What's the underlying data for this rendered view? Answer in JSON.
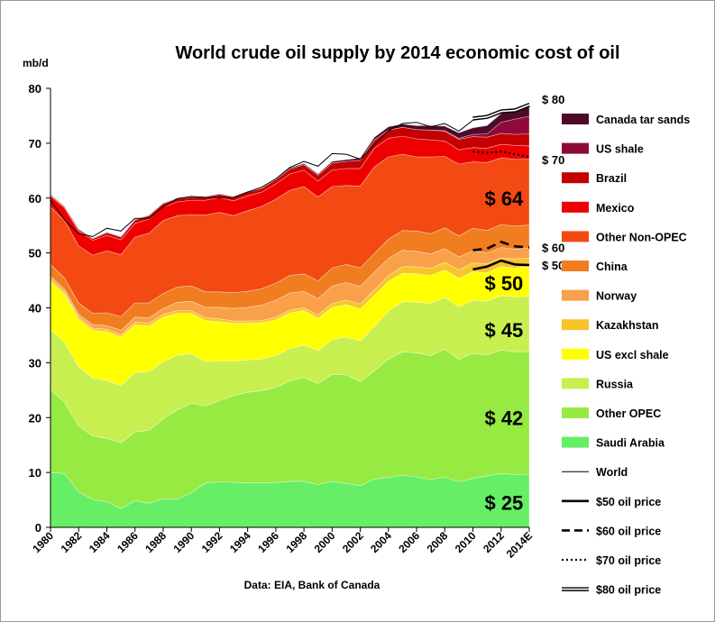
{
  "chart_data": {
    "type": "area",
    "title": "World crude oil supply by 2014  economic cost of oil",
    "ylabel": "mb/d",
    "source": "Data:  EIA, Bank of Canada",
    "ylim": [
      0,
      80
    ],
    "yticks": [
      0,
      10,
      20,
      30,
      40,
      50,
      60,
      70,
      80
    ],
    "xlim": [
      1980,
      2014
    ],
    "x": [
      1980,
      1981,
      1982,
      1983,
      1984,
      1985,
      1986,
      1987,
      1988,
      1989,
      1990,
      1991,
      1992,
      1993,
      1994,
      1995,
      1996,
      1997,
      1998,
      1999,
      2000,
      2001,
      2002,
      2003,
      2004,
      2005,
      2006,
      2007,
      2008,
      2009,
      2010,
      2011,
      2012,
      2013,
      2014
    ],
    "xtick_values": [
      1980,
      1982,
      1984,
      1986,
      1988,
      1990,
      1992,
      1994,
      1996,
      1998,
      2000,
      2002,
      2004,
      2006,
      2008,
      2010,
      2012,
      2014
    ],
    "xtick_labels": [
      "1980",
      "1982",
      "1984",
      "1986",
      "1988",
      "1990",
      "1992",
      "1994",
      "1996",
      "1998",
      "2000",
      "2002",
      "2004",
      "2006",
      "2008",
      "2010",
      "2012",
      "2014E"
    ],
    "series": [
      {
        "name": "Saudi Arabia",
        "color": "#66ee66",
        "values": [
          10,
          9.8,
          6.5,
          5.1,
          4.7,
          3.4,
          4.9,
          4.4,
          5.2,
          5.1,
          6.3,
          8.1,
          8.3,
          8.2,
          8.1,
          8.1,
          8.2,
          8.4,
          8.4,
          7.8,
          8.4,
          8.0,
          7.6,
          8.8,
          9.1,
          9.5,
          9.2,
          8.7,
          9.2,
          8.3,
          8.9,
          9.4,
          9.8,
          9.6,
          9.7
        ]
      },
      {
        "name": "Other OPEC",
        "color": "#96ea42",
        "values": [
          15,
          13.0,
          12.0,
          11.5,
          11.5,
          12.0,
          12.5,
          13.3,
          14.6,
          16.3,
          16.3,
          14.0,
          14.8,
          15.8,
          16.5,
          16.8,
          17.3,
          18.3,
          18.9,
          18.4,
          19.5,
          19.8,
          18.9,
          19.7,
          21.5,
          22.5,
          22.6,
          22.6,
          23.3,
          22.3,
          22.8,
          22.0,
          22.5,
          22.4,
          22.3
        ]
      },
      {
        "name": "Russia",
        "color": "#c8ef50",
        "values": [
          11,
          10.9,
          10.8,
          10.6,
          10.6,
          10.4,
          10.8,
          10.7,
          10.4,
          10.0,
          9.0,
          8.1,
          7.2,
          6.3,
          5.9,
          5.8,
          5.8,
          5.9,
          5.9,
          6.0,
          6.3,
          6.9,
          7.5,
          8.1,
          8.8,
          9.1,
          9.3,
          9.5,
          9.4,
          9.6,
          9.7,
          9.8,
          9.9,
          10.0,
          10.1
        ]
      },
      {
        "name": "US excl shale",
        "color": "#ffff00",
        "values": [
          8.9,
          8.8,
          8.7,
          8.7,
          8.9,
          8.9,
          8.7,
          8.3,
          8.1,
          7.6,
          7.4,
          7.5,
          7.2,
          6.9,
          6.7,
          6.6,
          6.5,
          6.5,
          6.3,
          5.9,
          5.9,
          5.9,
          5.8,
          5.7,
          5.4,
          5.2,
          5.1,
          5.1,
          5.0,
          5.2,
          5.2,
          5.2,
          5.3,
          5.3,
          5.4
        ]
      },
      {
        "name": "Kazakhstan",
        "color": "#f8c42a",
        "values": [
          0.4,
          0.4,
          0.4,
          0.4,
          0.4,
          0.4,
          0.5,
          0.5,
          0.5,
          0.5,
          0.5,
          0.5,
          0.5,
          0.4,
          0.4,
          0.4,
          0.5,
          0.5,
          0.5,
          0.6,
          0.7,
          0.8,
          0.9,
          1.0,
          1.1,
          1.2,
          1.3,
          1.3,
          1.4,
          1.5,
          1.6,
          1.6,
          1.6,
          1.6,
          1.6
        ]
      },
      {
        "name": "Norway",
        "color": "#f9a04a",
        "values": [
          0.5,
          0.5,
          0.5,
          0.6,
          0.7,
          0.8,
          0.9,
          1.0,
          1.1,
          1.5,
          1.7,
          1.9,
          2.1,
          2.3,
          2.5,
          2.8,
          3.1,
          3.1,
          3.0,
          3.0,
          3.2,
          3.2,
          3.2,
          3.2,
          3.1,
          3.0,
          2.8,
          2.6,
          2.5,
          2.4,
          2.2,
          2.0,
          1.9,
          1.8,
          1.8
        ]
      },
      {
        "name": "China",
        "color": "#f07d20",
        "values": [
          2.1,
          2.0,
          2.0,
          2.1,
          2.3,
          2.5,
          2.6,
          2.7,
          2.7,
          2.8,
          2.8,
          2.8,
          2.8,
          2.9,
          2.9,
          3.0,
          3.1,
          3.2,
          3.2,
          3.2,
          3.3,
          3.3,
          3.4,
          3.4,
          3.5,
          3.6,
          3.7,
          3.7,
          3.8,
          3.8,
          4.1,
          4.1,
          4.2,
          4.2,
          4.2
        ]
      },
      {
        "name": "Other Non-OPEC",
        "color": "#f24a12",
        "values": [
          10.5,
          10.5,
          10.4,
          10.6,
          11.3,
          11.3,
          12.0,
          12.7,
          13.3,
          13.0,
          13.0,
          14.0,
          14.5,
          14.0,
          14.7,
          15.0,
          15.3,
          15.5,
          15.9,
          15.3,
          14.8,
          14.4,
          14.9,
          15.8,
          15.0,
          13.9,
          13.5,
          14.0,
          13.0,
          13.1,
          12.1,
          12.4,
          12.1,
          12.2,
          12.0
        ]
      },
      {
        "name": "Mexico",
        "color": "#ee0000",
        "values": [
          2.0,
          2.3,
          2.7,
          2.7,
          2.8,
          2.7,
          2.5,
          2.6,
          2.5,
          2.5,
          2.6,
          2.7,
          2.7,
          2.7,
          2.7,
          2.6,
          2.8,
          3.0,
          3.0,
          2.9,
          3.0,
          3.1,
          3.2,
          3.4,
          3.4,
          3.3,
          3.3,
          3.1,
          2.8,
          2.6,
          2.6,
          2.6,
          2.5,
          2.5,
          2.4
        ]
      },
      {
        "name": "Brazil",
        "color": "#c40000",
        "values": [
          0.2,
          0.2,
          0.3,
          0.3,
          0.5,
          0.5,
          0.6,
          0.6,
          0.6,
          0.6,
          0.6,
          0.6,
          0.6,
          0.7,
          0.7,
          0.7,
          0.8,
          0.9,
          1.0,
          1.1,
          1.3,
          1.3,
          1.5,
          1.5,
          1.5,
          1.6,
          1.7,
          1.8,
          1.8,
          1.9,
          2.0,
          2.0,
          2.0,
          2.0,
          2.2
        ]
      },
      {
        "name": "US shale",
        "color": "#8e0a3a",
        "values": [
          0,
          0,
          0,
          0,
          0,
          0,
          0,
          0,
          0,
          0,
          0,
          0,
          0,
          0,
          0,
          0,
          0,
          0,
          0,
          0,
          0,
          0,
          0,
          0,
          0,
          0,
          0,
          0,
          0.1,
          0.2,
          0.4,
          0.6,
          2.0,
          2.8,
          3.2
        ]
      },
      {
        "name": "Canada tar sands",
        "color": "#4d0a2a",
        "values": [
          0.1,
          0.1,
          0.1,
          0.1,
          0.1,
          0.1,
          0.1,
          0.1,
          0.1,
          0.1,
          0.1,
          0.1,
          0.1,
          0.1,
          0.1,
          0.1,
          0.1,
          0.2,
          0.2,
          0.2,
          0.3,
          0.3,
          0.4,
          0.5,
          0.6,
          0.6,
          0.7,
          0.8,
          0.8,
          1.0,
          1.2,
          1.5,
          1.6,
          1.9,
          2.4
        ]
      }
    ],
    "cost_lines": [
      {
        "name": "World",
        "style": "thin",
        "x": [
          1980,
          1981,
          1982,
          1983,
          1984,
          1985,
          1986,
          1987,
          1988,
          1989,
          1990,
          1991,
          1992,
          1993,
          1994,
          1995,
          1996,
          1997,
          1998,
          1999,
          2000,
          2001,
          2002,
          2003,
          2004,
          2005,
          2006,
          2007,
          2008,
          2009,
          2010,
          2011,
          2012,
          2013,
          2014
        ],
        "values": [
          59.7,
          56,
          53.5,
          53,
          54.5,
          54,
          56.3,
          56.3,
          58.4,
          59.9,
          60.3,
          60.1,
          60.1,
          60.1,
          61.1,
          62.0,
          63.5,
          65.6,
          66.7,
          65.8,
          68.1,
          68.0,
          67.1,
          69.7,
          72.3,
          73.6,
          73.8,
          73.0,
          73.6,
          72.2,
          74.2,
          74.7,
          76.0,
          76.1,
          77.3
        ]
      },
      {
        "name": "$50 oil price",
        "style": "solid",
        "x": [
          2010,
          2011,
          2012,
          2013,
          2014
        ],
        "values": [
          47.0,
          47.5,
          48.6,
          47.9,
          47.8
        ]
      },
      {
        "name": "$60 oil price",
        "style": "dashed",
        "x": [
          2010,
          2011,
          2012,
          2013,
          2014
        ],
        "values": [
          50.5,
          50.8,
          52.0,
          51.2,
          51.0
        ]
      },
      {
        "name": "$70 oil price",
        "style": "dotted",
        "x": [
          2010,
          2011,
          2012,
          2013,
          2014
        ],
        "values": [
          68.5,
          68.2,
          68.5,
          68.0,
          67.5
        ]
      },
      {
        "name": "$80 oil price",
        "style": "double",
        "x": [
          2010,
          2011,
          2012,
          2013,
          2014
        ],
        "values": [
          74.5,
          74.8,
          75.8,
          76.0,
          77.0
        ]
      }
    ],
    "cost_labels": [
      {
        "text": "$ 25",
        "x": 2012.2,
        "y": 4.5,
        "kind": "big"
      },
      {
        "text": "$ 42",
        "x": 2012.2,
        "y": 20.0,
        "kind": "big"
      },
      {
        "text": "$ 45",
        "x": 2012.2,
        "y": 36.0,
        "kind": "big"
      },
      {
        "text": "$ 50",
        "x": 2012.2,
        "y": 44.5,
        "kind": "big"
      },
      {
        "text": "$ 64",
        "x": 2012.2,
        "y": 60.0,
        "kind": "big"
      },
      {
        "text": "$ 50",
        "x": 2014.9,
        "y": 47.8,
        "kind": "side"
      },
      {
        "text": "$ 60",
        "x": 2014.9,
        "y": 51.0,
        "kind": "side"
      },
      {
        "text": "$ 70",
        "x": 2014.9,
        "y": 67.0,
        "kind": "side"
      },
      {
        "text": "$ 80",
        "x": 2014.9,
        "y": 78.0,
        "kind": "side"
      }
    ],
    "legend_position": "right",
    "legend": [
      {
        "label": "Canada tar sands",
        "type": "swatch",
        "color": "#4d0a2a"
      },
      {
        "label": "US shale",
        "type": "swatch",
        "color": "#8e0a3a"
      },
      {
        "label": "Brazil",
        "type": "swatch",
        "color": "#c40000"
      },
      {
        "label": "Mexico",
        "type": "swatch",
        "color": "#ee0000"
      },
      {
        "label": "Other Non-OPEC",
        "type": "swatch",
        "color": "#f24a12"
      },
      {
        "label": "China",
        "type": "swatch",
        "color": "#f07d20"
      },
      {
        "label": "Norway",
        "type": "swatch",
        "color": "#f9a04a"
      },
      {
        "label": "Kazakhstan",
        "type": "swatch",
        "color": "#f8c42a"
      },
      {
        "label": "US excl shale",
        "type": "swatch",
        "color": "#ffff00"
      },
      {
        "label": "Russia",
        "type": "swatch",
        "color": "#c8ef50"
      },
      {
        "label": "Other OPEC",
        "type": "swatch",
        "color": "#96ea42"
      },
      {
        "label": "Saudi Arabia",
        "type": "swatch",
        "color": "#66ee66"
      },
      {
        "label": "World",
        "type": "thin"
      },
      {
        "label": "$50 oil price",
        "type": "solid"
      },
      {
        "label": "$60 oil price",
        "type": "dashed"
      },
      {
        "label": "$70 oil price",
        "type": "dotted"
      },
      {
        "label": "$80 oil price",
        "type": "double"
      }
    ]
  }
}
